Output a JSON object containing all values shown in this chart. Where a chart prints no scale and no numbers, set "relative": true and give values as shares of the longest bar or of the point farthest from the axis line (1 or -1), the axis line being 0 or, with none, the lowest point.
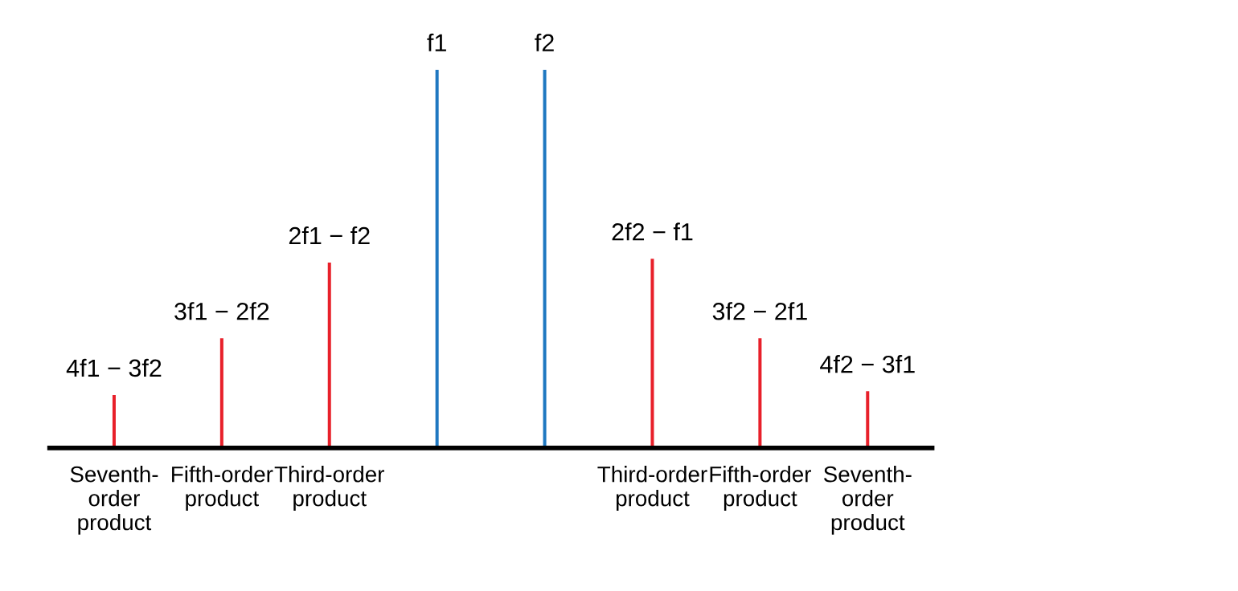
{
  "chart_data": {
    "type": "bar",
    "relative": true,
    "categories": [
      "Seventh-\norder\nproduct",
      "Fifth-order\nproduct",
      "Third-order\nproduct",
      null,
      null,
      "Third-order\nproduct",
      "Fifth-order\nproduct",
      "Seventh-\norder\nproduct"
    ],
    "values": [
      0.14,
      0.29,
      0.49,
      1,
      1,
      0.5,
      0.29,
      0.15
    ],
    "colors": [
      "#e8202a",
      "#e8202a",
      "#e8202a",
      "#1f78c1",
      "#1f78c1",
      "#e8202a",
      "#e8202a",
      "#e8202a"
    ],
    "annotations": [
      "4f1 − 3f2",
      "3f1 − 2f2",
      "2f1 − f2",
      "f1",
      "f2",
      "2f2 − f1",
      "3f2 − 2f1",
      "4f2 − 3f1"
    ],
    "grid": false,
    "legend": false
  }
}
